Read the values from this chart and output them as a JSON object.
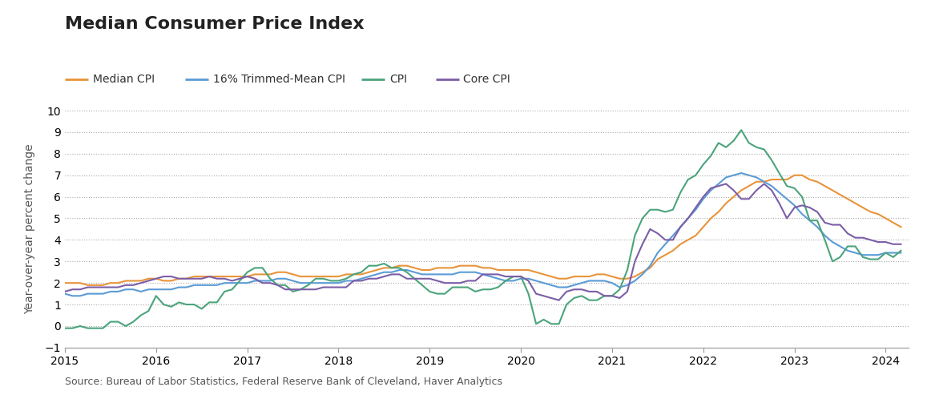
{
  "title": "Median Consumer Price Index",
  "ylabel": "Year-over-year percent change",
  "source": "Source: Bureau of Labor Statistics, Federal Reserve Bank of Cleveland, Haver Analytics",
  "legend": [
    "Median CPI",
    "16% Trimmed-Mean CPI",
    "CPI",
    "Core CPI"
  ],
  "colors": [
    "#E8943A",
    "#5B9BD5",
    "#4BA47B",
    "#7B5EA7"
  ],
  "ylim": [
    -1,
    10
  ],
  "yticks": [
    -1,
    0,
    1,
    2,
    3,
    4,
    5,
    6,
    7,
    8,
    9,
    10
  ],
  "xlim_start": 2015.0,
  "xlim_end": 2024.25,
  "background": "#FFFFFF",
  "dates": [
    2015.0,
    2015.083,
    2015.167,
    2015.25,
    2015.333,
    2015.417,
    2015.5,
    2015.583,
    2015.667,
    2015.75,
    2015.833,
    2015.917,
    2016.0,
    2016.083,
    2016.167,
    2016.25,
    2016.333,
    2016.417,
    2016.5,
    2016.583,
    2016.667,
    2016.75,
    2016.833,
    2016.917,
    2017.0,
    2017.083,
    2017.167,
    2017.25,
    2017.333,
    2017.417,
    2017.5,
    2017.583,
    2017.667,
    2017.75,
    2017.833,
    2017.917,
    2018.0,
    2018.083,
    2018.167,
    2018.25,
    2018.333,
    2018.417,
    2018.5,
    2018.583,
    2018.667,
    2018.75,
    2018.833,
    2018.917,
    2019.0,
    2019.083,
    2019.167,
    2019.25,
    2019.333,
    2019.417,
    2019.5,
    2019.583,
    2019.667,
    2019.75,
    2019.833,
    2019.917,
    2020.0,
    2020.083,
    2020.167,
    2020.25,
    2020.333,
    2020.417,
    2020.5,
    2020.583,
    2020.667,
    2020.75,
    2020.833,
    2020.917,
    2021.0,
    2021.083,
    2021.167,
    2021.25,
    2021.333,
    2021.417,
    2021.5,
    2021.583,
    2021.667,
    2021.75,
    2021.833,
    2021.917,
    2022.0,
    2022.083,
    2022.167,
    2022.25,
    2022.333,
    2022.417,
    2022.5,
    2022.583,
    2022.667,
    2022.75,
    2022.833,
    2022.917,
    2023.0,
    2023.083,
    2023.167,
    2023.25,
    2023.333,
    2023.417,
    2023.5,
    2023.583,
    2023.667,
    2023.75,
    2023.833,
    2023.917,
    2024.0,
    2024.083,
    2024.167
  ],
  "median_cpi": [
    2.0,
    2.0,
    2.0,
    1.9,
    1.9,
    1.9,
    2.0,
    2.0,
    2.1,
    2.1,
    2.1,
    2.2,
    2.2,
    2.1,
    2.1,
    2.2,
    2.2,
    2.3,
    2.3,
    2.3,
    2.3,
    2.3,
    2.3,
    2.3,
    2.3,
    2.4,
    2.4,
    2.4,
    2.5,
    2.5,
    2.4,
    2.3,
    2.3,
    2.3,
    2.3,
    2.3,
    2.3,
    2.4,
    2.4,
    2.4,
    2.5,
    2.6,
    2.7,
    2.7,
    2.8,
    2.8,
    2.7,
    2.6,
    2.6,
    2.7,
    2.7,
    2.7,
    2.8,
    2.8,
    2.8,
    2.7,
    2.7,
    2.6,
    2.6,
    2.6,
    2.6,
    2.6,
    2.5,
    2.4,
    2.3,
    2.2,
    2.2,
    2.3,
    2.3,
    2.3,
    2.4,
    2.4,
    2.3,
    2.2,
    2.2,
    2.3,
    2.5,
    2.7,
    3.1,
    3.3,
    3.5,
    3.8,
    4.0,
    4.2,
    4.6,
    5.0,
    5.3,
    5.7,
    6.0,
    6.3,
    6.5,
    6.7,
    6.7,
    6.8,
    6.8,
    6.8,
    7.0,
    7.0,
    6.8,
    6.7,
    6.5,
    6.3,
    6.1,
    5.9,
    5.7,
    5.5,
    5.3,
    5.2,
    5.0,
    4.8,
    4.6
  ],
  "trimmed_cpi": [
    1.5,
    1.4,
    1.4,
    1.5,
    1.5,
    1.5,
    1.6,
    1.6,
    1.7,
    1.7,
    1.6,
    1.7,
    1.7,
    1.7,
    1.7,
    1.8,
    1.8,
    1.9,
    1.9,
    1.9,
    1.9,
    2.0,
    2.0,
    2.0,
    2.0,
    2.1,
    2.1,
    2.1,
    2.2,
    2.2,
    2.1,
    2.0,
    2.0,
    2.0,
    2.0,
    2.0,
    2.0,
    2.1,
    2.1,
    2.2,
    2.3,
    2.4,
    2.5,
    2.5,
    2.6,
    2.6,
    2.5,
    2.4,
    2.4,
    2.4,
    2.4,
    2.4,
    2.5,
    2.5,
    2.5,
    2.4,
    2.3,
    2.2,
    2.1,
    2.1,
    2.2,
    2.2,
    2.1,
    2.0,
    1.9,
    1.8,
    1.8,
    1.9,
    2.0,
    2.1,
    2.1,
    2.1,
    2.0,
    1.8,
    1.9,
    2.1,
    2.4,
    2.8,
    3.4,
    3.8,
    4.2,
    4.6,
    5.0,
    5.4,
    5.9,
    6.3,
    6.6,
    6.9,
    7.0,
    7.1,
    7.0,
    6.9,
    6.7,
    6.5,
    6.2,
    5.9,
    5.6,
    5.2,
    4.9,
    4.6,
    4.2,
    3.9,
    3.7,
    3.5,
    3.4,
    3.3,
    3.3,
    3.3,
    3.4,
    3.4,
    3.4
  ],
  "cpi": [
    -0.1,
    -0.1,
    0.0,
    -0.1,
    -0.1,
    -0.1,
    0.2,
    0.2,
    0.0,
    0.2,
    0.5,
    0.7,
    1.4,
    1.0,
    0.9,
    1.1,
    1.0,
    1.0,
    0.8,
    1.1,
    1.1,
    1.6,
    1.7,
    2.1,
    2.5,
    2.7,
    2.7,
    2.2,
    1.9,
    1.9,
    1.6,
    1.7,
    1.9,
    2.2,
    2.2,
    2.1,
    2.1,
    2.2,
    2.4,
    2.5,
    2.8,
    2.8,
    2.9,
    2.7,
    2.7,
    2.5,
    2.2,
    1.9,
    1.6,
    1.5,
    1.5,
    1.8,
    1.8,
    1.8,
    1.6,
    1.7,
    1.7,
    1.8,
    2.1,
    2.3,
    2.3,
    1.5,
    0.1,
    0.3,
    0.1,
    0.1,
    1.0,
    1.3,
    1.4,
    1.2,
    1.2,
    1.4,
    1.4,
    1.7,
    2.6,
    4.2,
    5.0,
    5.4,
    5.4,
    5.3,
    5.4,
    6.2,
    6.8,
    7.0,
    7.5,
    7.9,
    8.5,
    8.3,
    8.6,
    9.1,
    8.5,
    8.3,
    8.2,
    7.7,
    7.1,
    6.5,
    6.4,
    6.0,
    4.9,
    4.9,
    4.0,
    3.0,
    3.2,
    3.7,
    3.7,
    3.2,
    3.1,
    3.1,
    3.4,
    3.2,
    3.5
  ],
  "core_cpi": [
    1.6,
    1.7,
    1.7,
    1.8,
    1.8,
    1.8,
    1.8,
    1.8,
    1.9,
    1.9,
    2.0,
    2.1,
    2.2,
    2.3,
    2.3,
    2.2,
    2.2,
    2.2,
    2.2,
    2.3,
    2.2,
    2.2,
    2.1,
    2.2,
    2.3,
    2.2,
    2.0,
    2.0,
    1.9,
    1.7,
    1.7,
    1.7,
    1.7,
    1.7,
    1.8,
    1.8,
    1.8,
    1.8,
    2.1,
    2.1,
    2.2,
    2.2,
    2.3,
    2.4,
    2.4,
    2.2,
    2.2,
    2.2,
    2.2,
    2.1,
    2.0,
    2.0,
    2.0,
    2.1,
    2.1,
    2.4,
    2.4,
    2.4,
    2.3,
    2.3,
    2.3,
    2.1,
    1.5,
    1.4,
    1.3,
    1.2,
    1.6,
    1.7,
    1.7,
    1.6,
    1.6,
    1.4,
    1.4,
    1.3,
    1.6,
    3.0,
    3.8,
    4.5,
    4.3,
    4.0,
    4.0,
    4.6,
    5.0,
    5.5,
    6.0,
    6.4,
    6.5,
    6.6,
    6.3,
    5.9,
    5.9,
    6.3,
    6.6,
    6.3,
    5.7,
    5.0,
    5.5,
    5.6,
    5.5,
    5.3,
    4.8,
    4.7,
    4.7,
    4.3,
    4.1,
    4.1,
    4.0,
    3.9,
    3.9,
    3.8,
    3.8
  ]
}
